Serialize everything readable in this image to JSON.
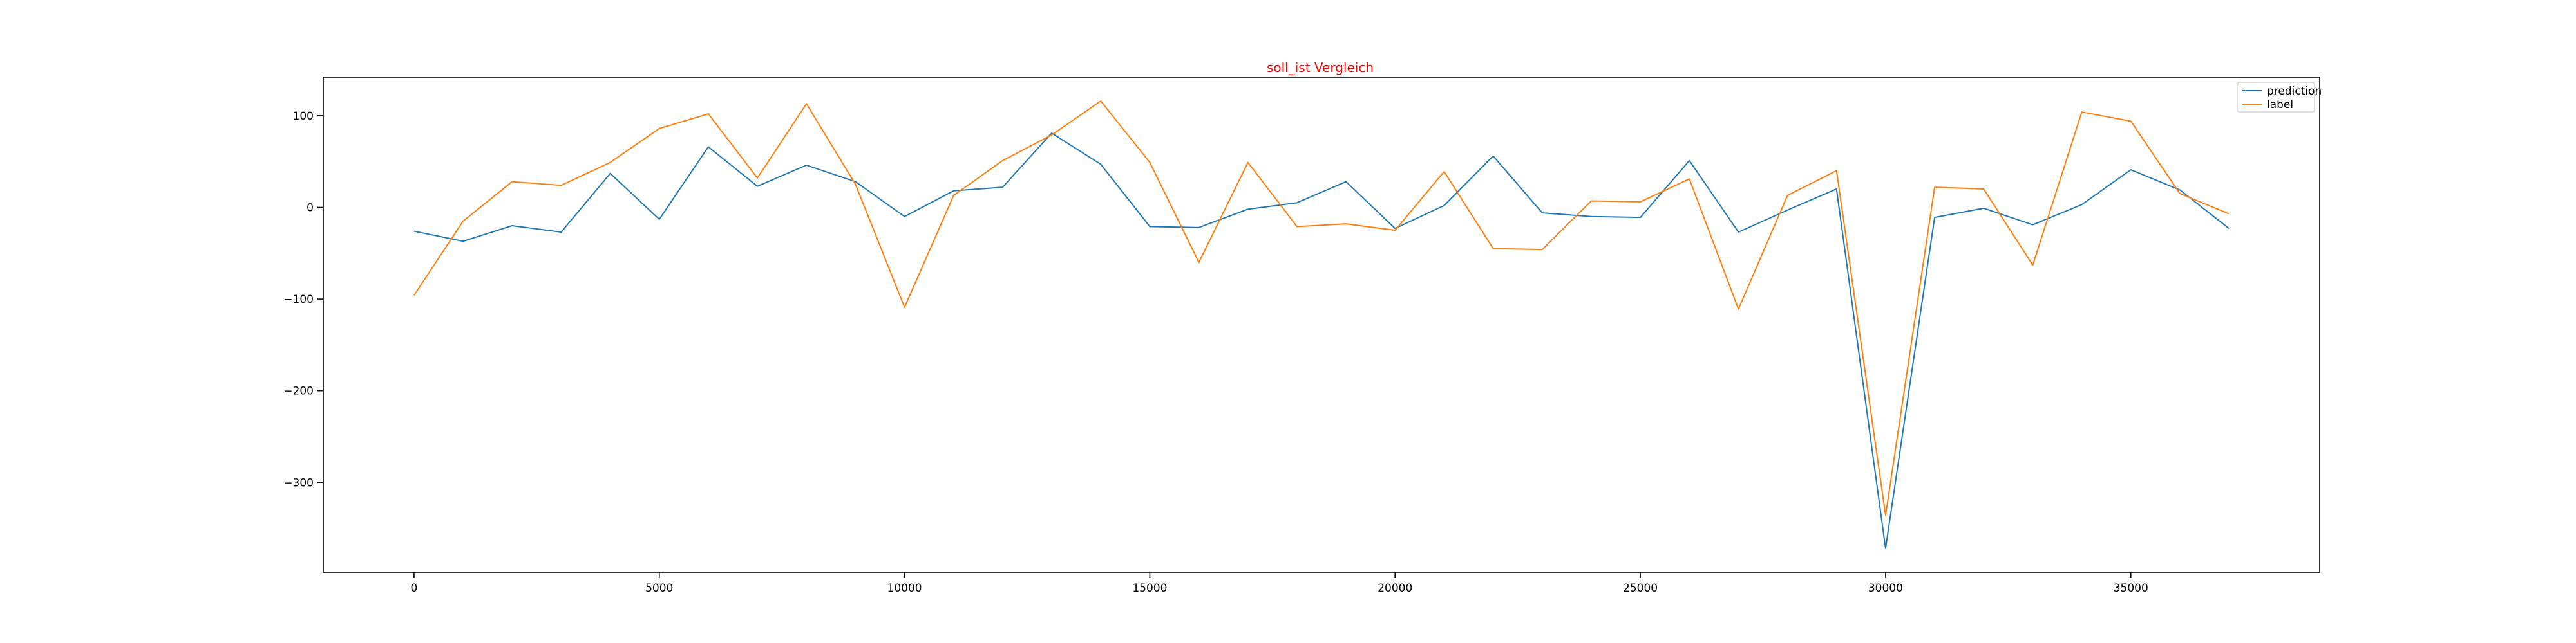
{
  "chart_data": {
    "type": "line",
    "title": "soll_ist Vergleich",
    "title_color": "#ff0000",
    "xlabel": "",
    "ylabel": "",
    "xlim": [
      -1850,
      38850
    ],
    "ylim": [
      -398,
      142
    ],
    "x_ticks": [
      0,
      5000,
      10000,
      15000,
      20000,
      25000,
      30000,
      35000
    ],
    "y_ticks": [
      100,
      0,
      -100,
      -200,
      -300
    ],
    "grid": false,
    "legend_position": "top-right",
    "x": [
      0,
      1000,
      2000,
      3000,
      4000,
      5000,
      6000,
      7000,
      8000,
      9000,
      10000,
      11000,
      12000,
      13000,
      14000,
      15000,
      16000,
      17000,
      18000,
      19000,
      20000,
      21000,
      22000,
      23000,
      24000,
      25000,
      26000,
      27000,
      28000,
      29000,
      30000,
      31000,
      32000,
      33000,
      34000,
      35000,
      36000,
      37000
    ],
    "series": [
      {
        "name": "prediction",
        "color": "#1f77b4",
        "values": [
          -26,
          -37,
          -20,
          -27,
          37,
          -13,
          66,
          23,
          46,
          28,
          -10,
          18,
          22,
          81,
          47,
          -21,
          -22,
          -2,
          5,
          28,
          -23,
          2,
          56,
          -6,
          -10,
          -11,
          51,
          -27,
          -3,
          20,
          -372,
          -11,
          -1,
          -19,
          3,
          41,
          19,
          -23
        ]
      },
      {
        "name": "label",
        "color": "#ff7f0e",
        "values": [
          -96,
          -15,
          28,
          24,
          49,
          86,
          102,
          32,
          113,
          25,
          -109,
          13,
          51,
          79,
          116,
          49,
          -60,
          49,
          -21,
          -18,
          -25,
          39,
          -45,
          -46,
          7,
          6,
          31,
          -111,
          13,
          40,
          -336,
          22,
          20,
          -63,
          104,
          94,
          15,
          -7
        ]
      }
    ]
  }
}
